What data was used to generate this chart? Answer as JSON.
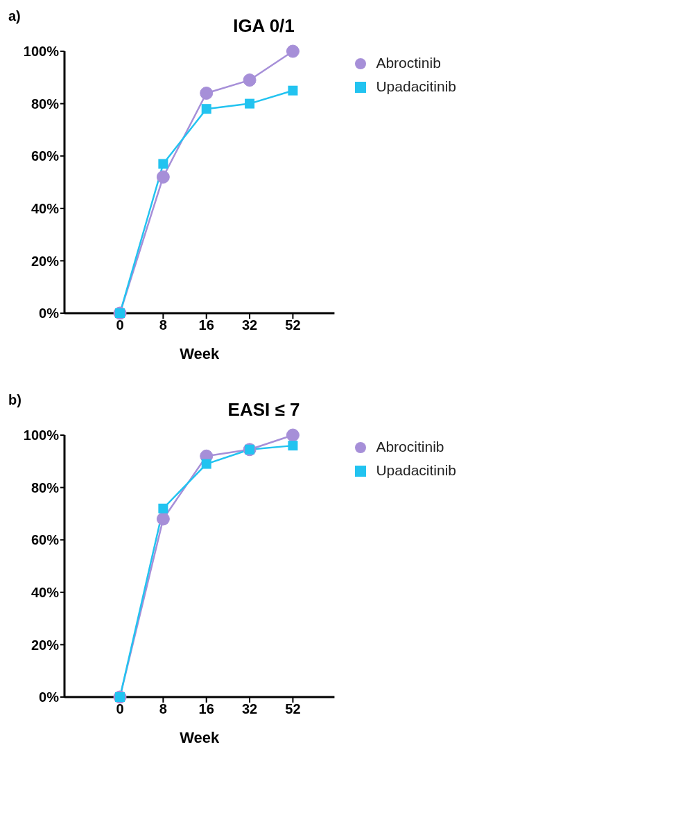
{
  "chart_data": [
    {
      "type": "line",
      "title": "IGA 0/1",
      "annotations": [
        "a)"
      ],
      "xlabel": "Week",
      "categories": [
        "0",
        "8",
        "16",
        "32",
        "52"
      ],
      "ylim": [
        0,
        100
      ],
      "yticks": [
        {
          "value": 0,
          "label": "0%"
        },
        {
          "value": 20,
          "label": "20%"
        },
        {
          "value": 40,
          "label": "40%"
        },
        {
          "value": 60,
          "label": "60%"
        },
        {
          "value": 80,
          "label": "80%"
        },
        {
          "value": 100,
          "label": "100%"
        }
      ],
      "legend": "top right",
      "line_style": "solid",
      "series": [
        {
          "name": "Abroctinib",
          "color": "#a68fd8",
          "marker": "circle",
          "values": [
            0,
            52,
            84,
            89,
            100
          ]
        },
        {
          "name": "Upadacitinib",
          "color": "#22c3f0",
          "marker": "square",
          "values": [
            0,
            57,
            78,
            80,
            85
          ]
        }
      ]
    },
    {
      "type": "line",
      "title": "EASI ≤ 7",
      "annotations": [
        "b)"
      ],
      "xlabel": "Week",
      "categories": [
        "0",
        "8",
        "16",
        "32",
        "52"
      ],
      "ylim": [
        0,
        100
      ],
      "yticks": [
        {
          "value": 0,
          "label": "0%"
        },
        {
          "value": 20,
          "label": "20%"
        },
        {
          "value": 40,
          "label": "40%"
        },
        {
          "value": 60,
          "label": "60%"
        },
        {
          "value": 80,
          "label": "80%"
        },
        {
          "value": 100,
          "label": "100%"
        }
      ],
      "legend": "top right",
      "line_style": "solid",
      "series": [
        {
          "name": "Abrocitinib",
          "color": "#a68fd8",
          "marker": "circle",
          "values": [
            0,
            68,
            92,
            94.5,
            100
          ]
        },
        {
          "name": "Upadacitinib",
          "color": "#22c3f0",
          "marker": "square",
          "values": [
            0,
            72,
            89,
            94.5,
            96
          ]
        }
      ]
    }
  ]
}
